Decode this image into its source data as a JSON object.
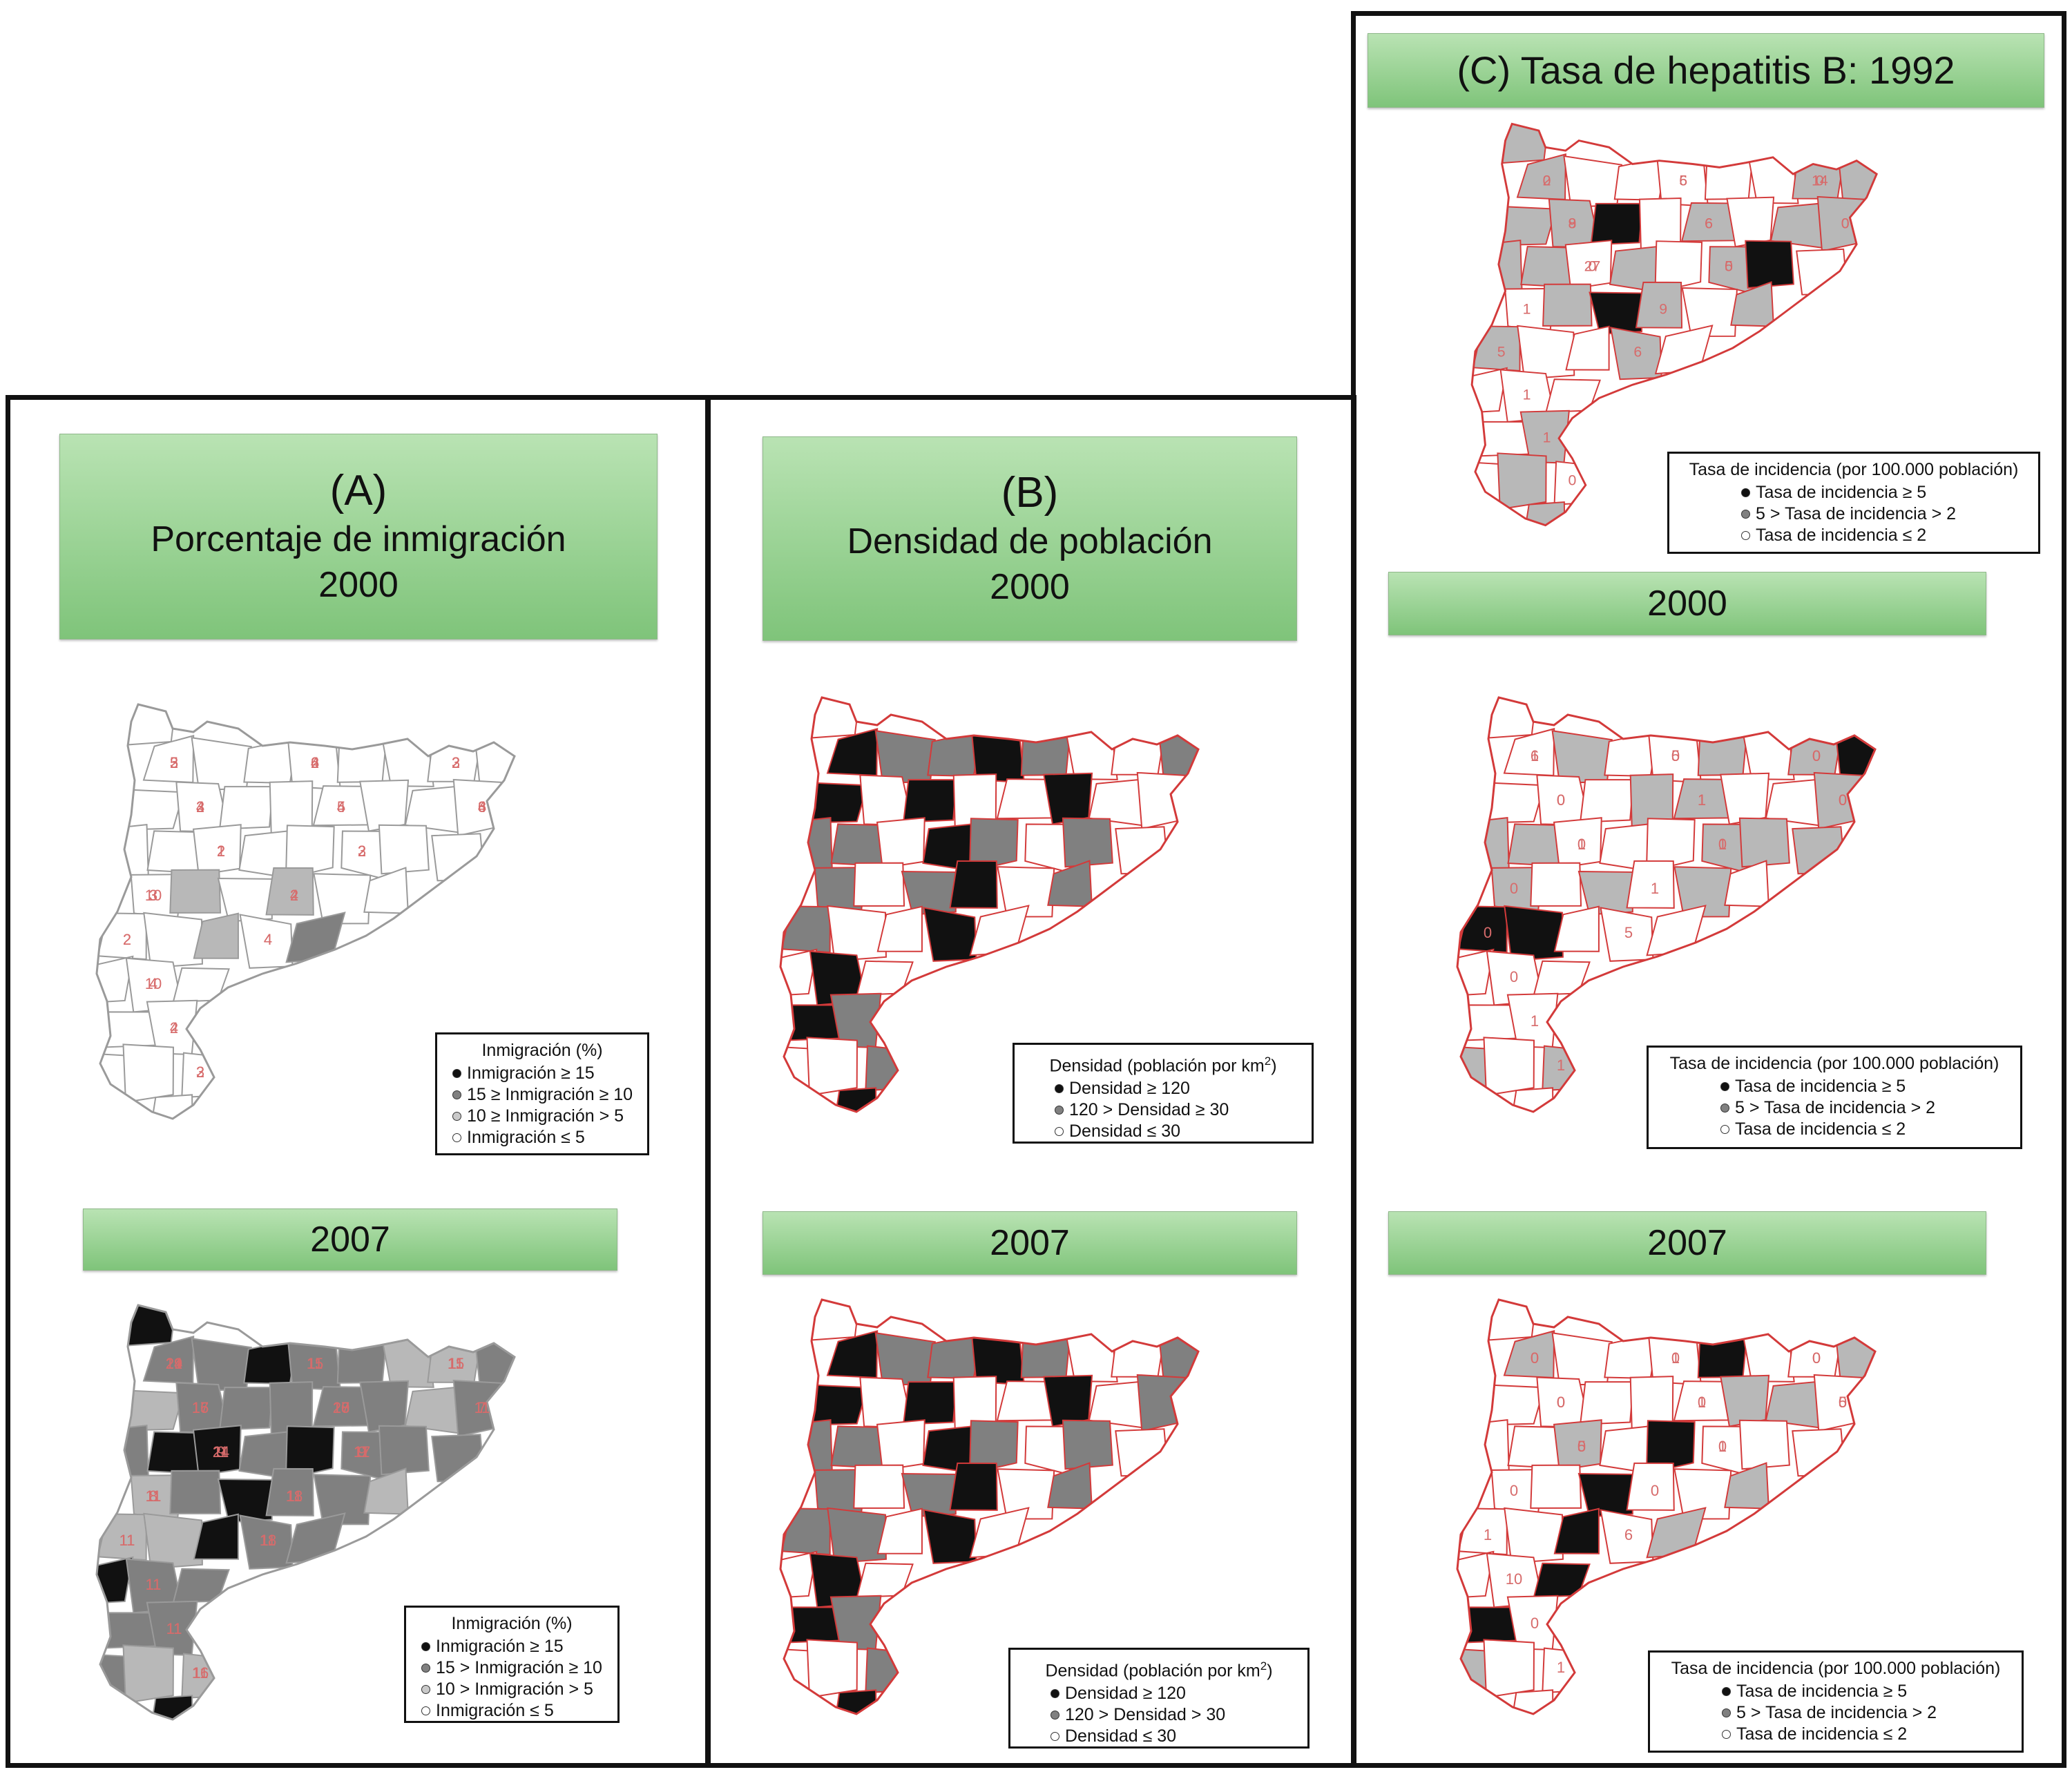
{
  "colors": {
    "dark": "#111111",
    "mid": "#808080",
    "light": "#b8b8b8",
    "white": "#ffffff",
    "border_red": "#d33a3a",
    "border_gray": "#9a9a9a",
    "label_red": "#d76b6b",
    "banner_green": "#8ccb86"
  },
  "panels": {
    "A": {
      "title_letter": "(A)",
      "title_line1": "Porcentaje de inmigración",
      "title_line2": "2000",
      "year2": "2007",
      "map2000": {
        "labels": [
          "5",
          "2",
          "3",
          "2",
          "5",
          "4",
          "2",
          "3",
          "10",
          "2",
          "2",
          "4",
          "4",
          "2",
          "2",
          "3",
          "6",
          "2",
          "3",
          "4",
          "3",
          "2",
          "2",
          "3",
          "2",
          "2",
          "4",
          "10",
          "4",
          "3",
          "2",
          "4",
          "2",
          "4",
          "4",
          "6",
          "1",
          "2",
          "3",
          "4"
        ]
      },
      "legend2000": {
        "title": "Inmigración (%)",
        "items": [
          "Inmigración ≥ 15",
          "15 ≥ Inmigración ≥ 10",
          "10 ≥ Inmigración > 5",
          "Inmigración ≤ 5"
        ]
      },
      "map2007": {
        "labels": [
          "21",
          "15",
          "11",
          "16",
          "18",
          "7",
          "24",
          "11",
          "8",
          "11",
          "11",
          "18",
          "11",
          "11",
          "11",
          "19",
          "11",
          "15",
          "15",
          "20",
          "11",
          "9",
          "9",
          "11",
          "11",
          "11",
          "11",
          "11",
          "11",
          "16",
          "24",
          "11",
          "11",
          "17",
          "17",
          "11",
          "11",
          "17",
          "11",
          "18"
        ]
      },
      "legend2007": {
        "title": "Inmigración (%)",
        "items": [
          "Inmigración ≥ 15",
          "15 > Inmigración ≥ 10",
          "10 > Inmigración > 5",
          "Inmigración ≤ 5"
        ]
      }
    },
    "B": {
      "title_letter": "(B)",
      "title_line1": "Densidad de población",
      "title_line2": "2000",
      "year2": "2007",
      "legend2000": {
        "title": "Densidad (población por km",
        "title_sup": "2",
        "title_end": ")",
        "items": [
          "Densidad ≥ 120",
          "120 > Densidad ≥ 30",
          "Densidad ≤ 30"
        ]
      },
      "legend2007": {
        "title": "Densidad (población por km",
        "title_sup": "2",
        "title_end": ")",
        "items": [
          "Densidad ≥ 120",
          "120 > Densidad > 30",
          "Densidad ≤ 30"
        ]
      }
    },
    "C": {
      "title": "(C) Tasa de hepatitis B: 1992",
      "year2": "2000",
      "year3": "2007",
      "map1992": {
        "labels": [
          "0",
          "5",
          "0",
          "8",
          "6",
          "0",
          "0",
          "0",
          "1",
          "9",
          "5",
          "6",
          "1",
          "1",
          "0",
          "2",
          "6",
          "14",
          "9",
          "6",
          "0",
          "27",
          "5"
        ]
      },
      "legend1992": {
        "title": "Tasa de incidencia (por 100.000 población)",
        "items": [
          "Tasa de incidencia ≥ 5",
          "5 > Tasa de incidencia > 2",
          "Tasa de incidencia ≤ 2"
        ]
      },
      "map2000": {
        "labels": [
          "6",
          "0",
          "0",
          "0",
          "1",
          "0",
          "0",
          "0",
          "0",
          "1",
          "0",
          "5",
          "0",
          "1",
          "1",
          "1",
          "5",
          "0",
          "0",
          "1",
          "0",
          "1",
          "1"
        ]
      },
      "legend2000": {
        "title": "Tasa de incidencia (por 100.000 población)",
        "items": [
          "Tasa de incidencia ≥ 5",
          "5 > Tasa de incidencia > 2",
          "Tasa de incidencia ≤ 2"
        ]
      },
      "map2007": {
        "labels": [
          "0",
          "0",
          "0",
          "0",
          "0",
          "0",
          "5",
          "0",
          "0",
          "0",
          "1",
          "6",
          "10",
          "0",
          "1",
          "0",
          "1",
          "0",
          "0",
          "1",
          "5",
          "0",
          "1"
        ]
      },
      "legend2007": {
        "title": "Tasa de incidencia (por 100.000 población)",
        "items": [
          "Tasa de incidencia ≥ 5",
          "5 > Tasa de incidencia > 2",
          "Tasa de incidencia ≤ 2"
        ]
      }
    }
  }
}
